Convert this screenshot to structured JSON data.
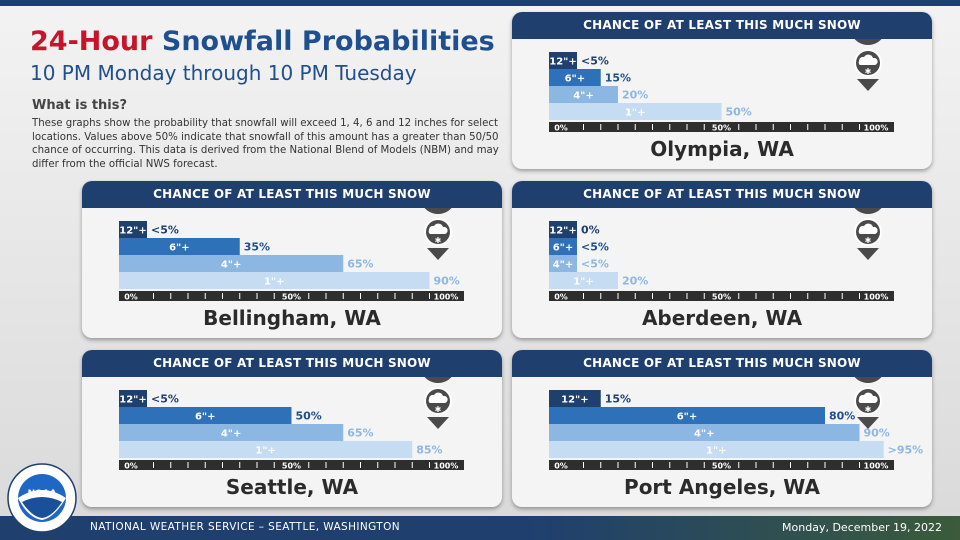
{
  "header": {
    "title_accent": "24-Hour",
    "title_main": "Snowfall Probabilities",
    "subtitle": "10 PM Monday through 10 PM Tuesday"
  },
  "info": {
    "heading": "What is this?",
    "body": "These graphs show the probability that snowfall will exceed 1, 4, 6 and 12 inches for select locations. Values above 50% indicate that snowfall of this amount has a greater than 50/50 chance of occurring. This data is derived from the National Blend of Models (NBM) and may differ from the official NWS forecast."
  },
  "footer": {
    "office": "NATIONAL WEATHER SERVICE – SEATTLE, WASHINGTON",
    "date": "Monday, December 19, 2022"
  },
  "logo": {
    "text": "NOAA",
    "icon": "noaa-logo"
  },
  "colors": {
    "12": "#1f3f6f",
    "6": "#2f71b8",
    "4": "#8db7e3",
    "1": "#c6dcf2",
    "accent": "#c6142b",
    "header": "#1f3f6f"
  },
  "chart_data": [
    {
      "type": "bar",
      "title": "CHANCE OF AT LEAST THIS MUCH SNOW",
      "location": "Olympia, WA",
      "categories": [
        "12\"+",
        "6\"+",
        "4\"+",
        "1\"+"
      ],
      "values": [
        2,
        15,
        20,
        50
      ],
      "labels": [
        "<5%",
        "15%",
        "20%",
        "50%"
      ],
      "xlim": [
        0,
        100
      ],
      "ticks": [
        "0%",
        "50%",
        "100%"
      ],
      "icon": "snow-pin-icon"
    },
    {
      "type": "bar",
      "title": "CHANCE OF AT LEAST THIS MUCH SNOW",
      "location": "Bellingham, WA",
      "categories": [
        "12\"+",
        "6\"+",
        "4\"+",
        "1\"+"
      ],
      "values": [
        2,
        35,
        65,
        90
      ],
      "labels": [
        "<5%",
        "35%",
        "65%",
        "90%"
      ],
      "xlim": [
        0,
        100
      ],
      "ticks": [
        "0%",
        "50%",
        "100%"
      ],
      "icon": "snow-pin-icon"
    },
    {
      "type": "bar",
      "title": "CHANCE OF AT LEAST THIS MUCH SNOW",
      "location": "Aberdeen, WA",
      "categories": [
        "12\"+",
        "6\"+",
        "4\"+",
        "1\"+"
      ],
      "values": [
        0,
        2,
        2,
        20
      ],
      "labels": [
        "0%",
        "<5%",
        "<5%",
        "20%"
      ],
      "xlim": [
        0,
        100
      ],
      "ticks": [
        "0%",
        "50%",
        "100%"
      ],
      "icon": "snow-pin-icon"
    },
    {
      "type": "bar",
      "title": "CHANCE OF AT LEAST THIS MUCH SNOW",
      "location": "Seattle, WA",
      "categories": [
        "12\"+",
        "6\"+",
        "4\"+",
        "1\"+"
      ],
      "values": [
        2,
        50,
        65,
        85
      ],
      "labels": [
        "<5%",
        "50%",
        "65%",
        "85%"
      ],
      "xlim": [
        0,
        100
      ],
      "ticks": [
        "0%",
        "50%",
        "100%"
      ],
      "icon": "snow-pin-icon"
    },
    {
      "type": "bar",
      "title": "CHANCE OF AT LEAST THIS MUCH SNOW",
      "location": "Port Angeles, WA",
      "categories": [
        "12\"+",
        "6\"+",
        "4\"+",
        "1\"+"
      ],
      "values": [
        15,
        80,
        90,
        97
      ],
      "labels": [
        "15%",
        "80%",
        "90%",
        ">95%"
      ],
      "xlim": [
        0,
        100
      ],
      "ticks": [
        "0%",
        "50%",
        "100%"
      ],
      "icon": "snow-pin-icon"
    }
  ]
}
